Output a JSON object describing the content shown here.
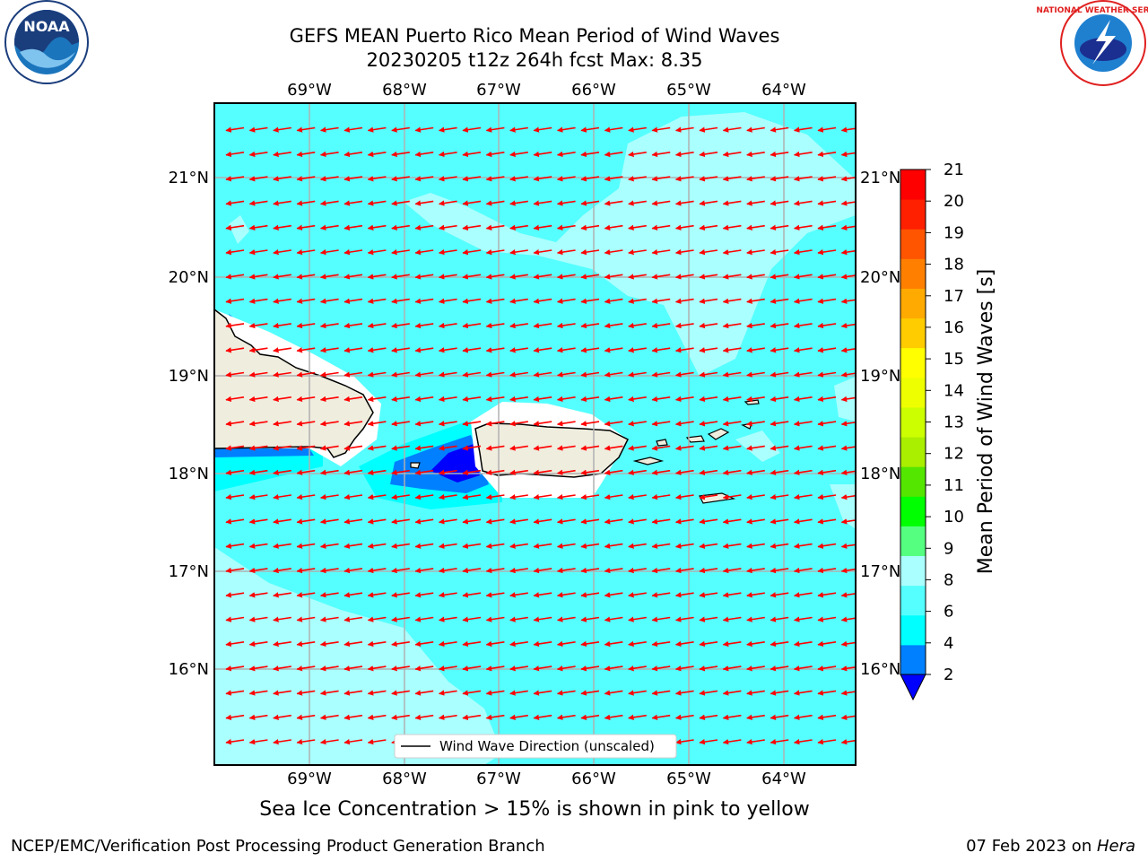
{
  "header": {
    "title_line1": "GEFS MEAN Puerto Rico Mean Period of Wind Waves",
    "title_line2": "20230205 t12z 264h fcst   Max: 8.35"
  },
  "logos": {
    "left": {
      "name": "noaa-logo",
      "text": "NOAA"
    },
    "right": {
      "name": "nws-logo",
      "text": "NATIONAL WEATHER SERVICE"
    }
  },
  "map": {
    "lon_labels": [
      "69°W",
      "68°W",
      "67°W",
      "66°W",
      "65°W",
      "64°W"
    ],
    "lat_labels": [
      "21°N",
      "20°N",
      "19°N",
      "18°N",
      "17°N",
      "16°N"
    ],
    "land_color": "#efedde",
    "coast_color": "#000000",
    "arrow_color": "#ff0000",
    "grid_color": "#b0b0b0",
    "legend_label": "Wind Wave Direction (unscaled)"
  },
  "colorbar": {
    "title": "Mean Period of Wind Waves [s]",
    "tick_labels": [
      "2",
      "4",
      "6",
      "8",
      "9",
      "10",
      "11",
      "12",
      "13",
      "14",
      "15",
      "16",
      "17",
      "18",
      "19",
      "20",
      "21"
    ],
    "colors": [
      "#0000ff",
      "#0080ff",
      "#00ffff",
      "#55ffff",
      "#aaffff",
      "#55ff80",
      "#00ff00",
      "#55e600",
      "#aaee00",
      "#ccff00",
      "#eeff00",
      "#ffff00",
      "#ffcc00",
      "#ffaa00",
      "#ff8000",
      "#ff5500",
      "#ff2000",
      "#ff0000"
    ]
  },
  "subtitle": "Sea Ice Concentration > 15% is shown in pink to yellow",
  "footer": {
    "left": "NCEP/EMC/Verification Post Processing Product Generation Branch",
    "right_prefix": "07 Feb 2023 on ",
    "right_host": "Hera"
  }
}
